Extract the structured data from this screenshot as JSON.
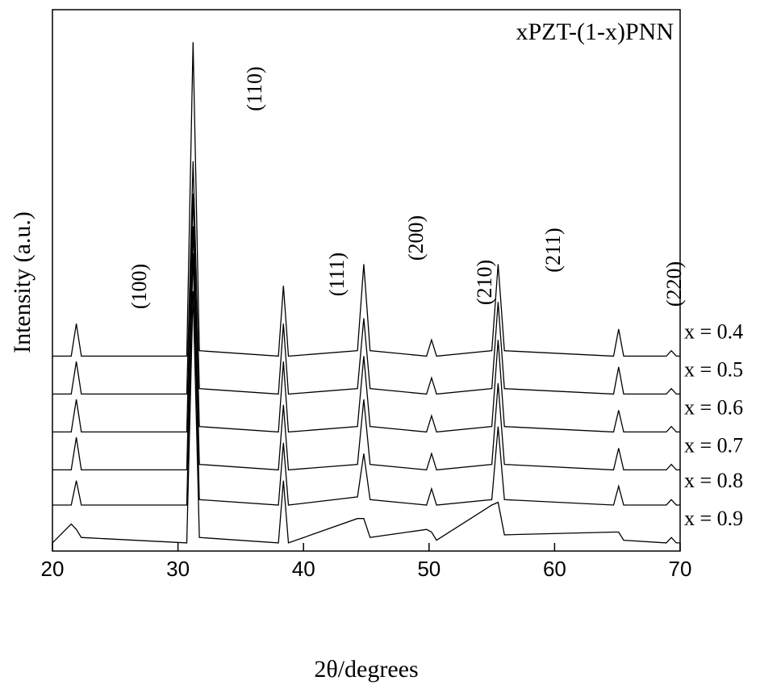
{
  "chart_data": {
    "type": "line",
    "title": "xPZT-(1-x)PNN",
    "x_label": "2θ/degrees",
    "y_label": "Intensity (a.u.)",
    "annotations": [
      "(100)",
      "(110)",
      "(111)",
      "(200)",
      "(210)",
      "(211)",
      "(220)"
    ],
    "x": [
      20,
      21.5,
      21.9,
      22.3,
      30.7,
      31.2,
      31.7,
      38.0,
      38.4,
      38.8,
      44.3,
      44.8,
      45.3,
      49.8,
      50.2,
      50.6,
      55.0,
      55.5,
      56.0,
      64.7,
      65.1,
      65.5,
      68.9,
      69.3,
      69.7,
      70
    ],
    "series": [
      {
        "name": "x = 0.4",
        "color": "#000000",
        "values": [
          36,
          36,
          42,
          36,
          36,
          94,
          37,
          36,
          49,
          36,
          37,
          53,
          37,
          36,
          39,
          36,
          37,
          53,
          37,
          36,
          41,
          36,
          36,
          37,
          36,
          36
        ]
      },
      {
        "name": "x = 0.5",
        "color": "#000000",
        "values": [
          29,
          29,
          35,
          29,
          29,
          72,
          30,
          29,
          42,
          29,
          30,
          43,
          30,
          29,
          32,
          29,
          30,
          46,
          30,
          29,
          34,
          29,
          29,
          30,
          29,
          29
        ]
      },
      {
        "name": "x = 0.6",
        "color": "#000000",
        "values": [
          22,
          22,
          28,
          22,
          22,
          66,
          23,
          22,
          35,
          22,
          23,
          36,
          23,
          22,
          25,
          22,
          23,
          39,
          23,
          22,
          26,
          22,
          22,
          23,
          22,
          22
        ]
      },
      {
        "name": "x = 0.7",
        "color": "#000000",
        "values": [
          15,
          15,
          21,
          15,
          15,
          60,
          16,
          15,
          27,
          15,
          16,
          28,
          16,
          15,
          18,
          15,
          16,
          31,
          16,
          15,
          19,
          15,
          15,
          16,
          15,
          15
        ]
      },
      {
        "name": "x = 0.8",
        "color": "#000000",
        "values": [
          8.5,
          8.5,
          13,
          8.5,
          8.5,
          55,
          9.5,
          8.5,
          20,
          8.5,
          10,
          18,
          9.5,
          8.5,
          11.5,
          8.5,
          9.5,
          23,
          9.5,
          8.5,
          12,
          8.5,
          8.5,
          9.5,
          8.5,
          8.5
        ]
      },
      {
        "name": "x = 0.9",
        "color": "#000000",
        "values": [
          1.5,
          5,
          4,
          2.5,
          1.5,
          48,
          2.5,
          1.5,
          13,
          1.5,
          6,
          6,
          2.5,
          4,
          3.5,
          2,
          8.5,
          9,
          3,
          3.5,
          3.5,
          2,
          1.5,
          2.5,
          1.5,
          1.5
        ]
      }
    ],
    "xlim": [
      20,
      70
    ],
    "xticks": [
      20,
      30,
      40,
      50,
      60,
      70
    ],
    "ylim": [
      0,
      100
    ]
  }
}
